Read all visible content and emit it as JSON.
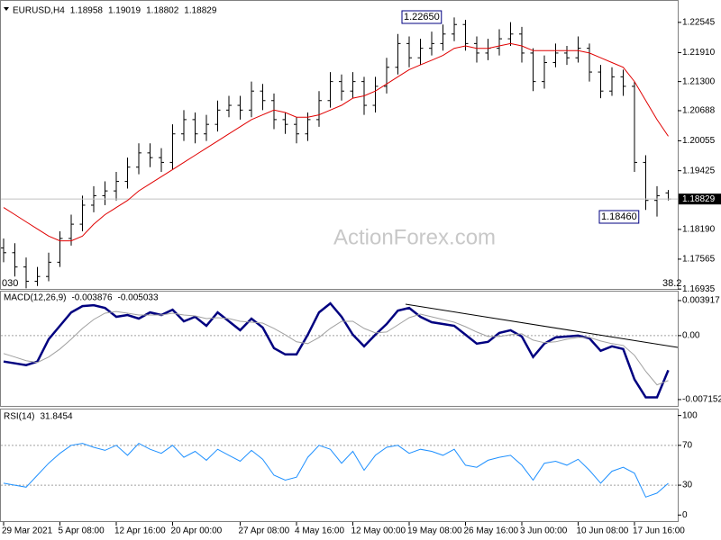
{
  "chart_data": [
    {
      "type": "ohlc",
      "title": "EURUSD,H4",
      "color": "#000000",
      "open": [
        1.178,
        1.177,
        1.174,
        1.171,
        1.172,
        1.175,
        1.18,
        1.183,
        1.187,
        1.189,
        1.19,
        1.192,
        1.195,
        1.198,
        1.197,
        1.196,
        1.202,
        1.205,
        1.202,
        1.204,
        1.207,
        1.208,
        1.207,
        1.211,
        1.209,
        1.205,
        1.204,
        1.202,
        1.205,
        1.209,
        1.213,
        1.211,
        1.213,
        1.208,
        1.212,
        1.216,
        1.221,
        1.218,
        1.22,
        1.221,
        1.223,
        1.225,
        1.221,
        1.219,
        1.22,
        1.222,
        1.223,
        1.219,
        1.213,
        1.217,
        1.219,
        1.218,
        1.22,
        1.215,
        1.211,
        1.214,
        1.212,
        1.196,
        1.188,
        1.18958
      ],
      "high": [
        1.18,
        1.179,
        1.176,
        1.174,
        1.177,
        1.1815,
        1.185,
        1.189,
        1.191,
        1.192,
        1.194,
        1.197,
        1.2,
        1.2,
        1.199,
        1.204,
        1.207,
        1.2065,
        1.206,
        1.209,
        1.21,
        1.21,
        1.213,
        1.2125,
        1.2105,
        1.2065,
        1.2055,
        1.2065,
        1.211,
        1.215,
        1.2145,
        1.215,
        1.214,
        1.214,
        1.218,
        1.223,
        1.2225,
        1.222,
        1.2235,
        1.225,
        1.2265,
        1.226,
        1.2225,
        1.222,
        1.224,
        1.2255,
        1.2245,
        1.22,
        1.2185,
        1.221,
        1.2205,
        1.2225,
        1.221,
        1.2165,
        1.216,
        1.2155,
        1.213,
        1.1975,
        1.191,
        1.19019
      ],
      "low": [
        1.175,
        1.172,
        1.1695,
        1.17,
        1.171,
        1.174,
        1.1785,
        1.1815,
        1.1855,
        1.187,
        1.188,
        1.1905,
        1.1935,
        1.195,
        1.194,
        1.1945,
        1.2005,
        1.2,
        1.2005,
        1.2025,
        1.2055,
        1.205,
        1.2055,
        1.207,
        1.203,
        1.202,
        1.2,
        1.2005,
        1.2035,
        1.2075,
        1.209,
        1.2095,
        1.206,
        1.2065,
        1.2105,
        1.2145,
        1.216,
        1.2165,
        1.2185,
        1.2195,
        1.2215,
        1.2195,
        1.217,
        1.2175,
        1.2185,
        1.2205,
        1.217,
        1.211,
        1.2115,
        1.216,
        1.2165,
        1.217,
        1.213,
        1.2095,
        1.21,
        1.21,
        1.194,
        1.186,
        1.1846,
        1.18802
      ],
      "close": [
        1.177,
        1.174,
        1.171,
        1.172,
        1.175,
        1.18,
        1.183,
        1.187,
        1.189,
        1.19,
        1.192,
        1.195,
        1.198,
        1.197,
        1.196,
        1.202,
        1.205,
        1.202,
        1.204,
        1.207,
        1.208,
        1.207,
        1.211,
        1.209,
        1.205,
        1.204,
        1.202,
        1.205,
        1.209,
        1.213,
        1.211,
        1.213,
        1.208,
        1.212,
        1.216,
        1.221,
        1.218,
        1.22,
        1.221,
        1.223,
        1.225,
        1.221,
        1.219,
        1.22,
        1.222,
        1.223,
        1.219,
        1.213,
        1.217,
        1.219,
        1.218,
        1.22,
        1.215,
        1.211,
        1.214,
        1.212,
        1.196,
        1.188,
        1.189,
        1.18829
      ],
      "series": [
        {
          "color": "#e00000",
          "values": [
            1.1865,
            1.185,
            1.1835,
            1.182,
            1.1805,
            1.1795,
            1.1795,
            1.1805,
            1.183,
            1.185,
            1.1865,
            1.188,
            1.19,
            1.1915,
            1.193,
            1.1945,
            1.196,
            1.1975,
            1.199,
            1.2005,
            1.202,
            1.2035,
            1.205,
            1.206,
            1.207,
            1.2065,
            1.2055,
            1.2055,
            1.206,
            1.207,
            1.208,
            1.2095,
            1.21,
            1.211,
            1.2125,
            1.214,
            1.2155,
            1.2165,
            1.2175,
            1.2185,
            1.22,
            1.2205,
            1.22,
            1.22,
            1.2205,
            1.221,
            1.2205,
            1.2195,
            1.2195,
            1.2195,
            1.2195,
            1.2195,
            1.219,
            1.218,
            1.217,
            1.216,
            1.213,
            1.209,
            1.205,
            1.2015
          ]
        }
      ],
      "ylim": [
        1.1692,
        1.2294
      ],
      "yticks": [
        1.22545,
        {
          "value": 1.2191,
          "label": "1.21910"
        },
        {
          "value": 1.213,
          "label": "1.21300"
        },
        1.20688,
        1.20055,
        1.19425,
        {
          "value": 1.1819,
          "label": "1.18190"
        },
        1.17565,
        1.16935
      ],
      "annotations": [
        "1.22650",
        "1.18460",
        "030",
        "38.2"
      ],
      "watermark": "ActionForex.com"
    },
    {
      "type": "line",
      "title": "MACD(12,26,9)",
      "series": [
        {
          "color": "#000080",
          "values": [
            -0.0029,
            -0.0031,
            -0.0033,
            -0.0029,
            -0.0004,
            0.0011,
            0.0026,
            0.0033,
            0.0034,
            0.0031,
            0.0021,
            0.0023,
            0.0019,
            0.0026,
            0.0023,
            0.0029,
            0.0016,
            0.0021,
            0.0011,
            0.0026,
            0.0016,
            0.0006,
            0.0019,
            0.0009,
            -0.0014,
            -0.0021,
            -0.0021,
            0.0001,
            0.0026,
            0.0036,
            0.0021,
            0.0001,
            -0.0012,
            0.0001,
            0.0013,
            0.0028,
            0.0031,
            0.0021,
            0.0015,
            0.0013,
            0.0011,
            0.0001,
            -0.0009,
            -0.0007,
            0.0003,
            0.0006,
            -0.0001,
            -0.0024,
            -0.0009,
            -0.0002,
            -0.0001,
            0,
            -0.0003,
            -0.0017,
            -0.0012,
            -0.0015,
            -0.0049,
            -0.0069,
            -0.0069,
            -0.003876
          ]
        },
        {
          "color": "#a0a0a0",
          "values": [
            -0.002,
            -0.0024,
            -0.0028,
            -0.003,
            -0.0024,
            -0.0015,
            -0.0004,
            0.0008,
            0.0018,
            0.0025,
            0.0027,
            0.0025,
            0.0023,
            0.0023,
            0.0023,
            0.0025,
            0.0023,
            0.0022,
            0.0019,
            0.002,
            0.0019,
            0.0016,
            0.0015,
            0.0014,
            0.0008,
            0.0001,
            -0.0007,
            -0.0009,
            -0.0002,
            0.0008,
            0.0016,
            0.0016,
            0.0008,
            0.0003,
            0.0004,
            0.0012,
            0.002,
            0.0024,
            0.0021,
            0.0018,
            0.0015,
            0.001,
            0.0004,
            -0.0001,
            -0.0001,
            0.0001,
            0.0002,
            -0.0005,
            -0.0008,
            -0.0007,
            -0.0004,
            -0.0002,
            -0.0002,
            -0.0006,
            -0.0009,
            -0.0011,
            -0.0022,
            -0.004,
            -0.0055,
            -0.005033
          ]
        }
      ],
      "ylim": [
        -0.00796,
        0.00502
      ],
      "yticks": [
        0.003917,
        {
          "value": 0,
          "label": "0.00"
        },
        -0.007152
      ],
      "levels": [
        0
      ]
    },
    {
      "type": "line",
      "title": "RSI(14)",
      "categories": [
        "29 Mar 2021",
        null,
        null,
        null,
        null,
        "5 Apr 08:00",
        null,
        null,
        null,
        null,
        "12 Apr 16:00",
        null,
        null,
        null,
        null,
        "20 Apr 00:00",
        null,
        null,
        null,
        null,
        null,
        "27 Apr 08:00",
        null,
        null,
        null,
        null,
        "4 May 16:00",
        null,
        null,
        null,
        null,
        "12 May 00:00",
        null,
        null,
        null,
        null,
        "19 May 08:00",
        null,
        null,
        null,
        null,
        "26 May 16:00",
        null,
        null,
        null,
        null,
        "3 Jun 00:00",
        null,
        null,
        null,
        null,
        "10 Jun 08:00",
        null,
        null,
        null,
        null,
        "17 Jun 16:00",
        null,
        null,
        null
      ],
      "series": [
        {
          "color": "#1e90ff",
          "values": [
            32,
            30,
            28,
            40,
            52,
            62,
            70,
            72,
            68,
            65,
            70,
            60,
            72,
            66,
            62,
            70,
            58,
            64,
            55,
            66,
            60,
            54,
            65,
            56,
            40,
            35,
            38,
            58,
            70,
            66,
            52,
            64,
            45,
            60,
            68,
            70,
            62,
            66,
            64,
            60,
            66,
            50,
            48,
            55,
            58,
            60,
            50,
            35,
            52,
            54,
            50,
            56,
            45,
            32,
            44,
            48,
            42,
            18,
            22,
            31.8454
          ]
        }
      ],
      "ylim": [
        -7,
        106
      ],
      "yticks": [
        100,
        70,
        30,
        0
      ],
      "levels": [
        70,
        30
      ]
    }
  ]
}
